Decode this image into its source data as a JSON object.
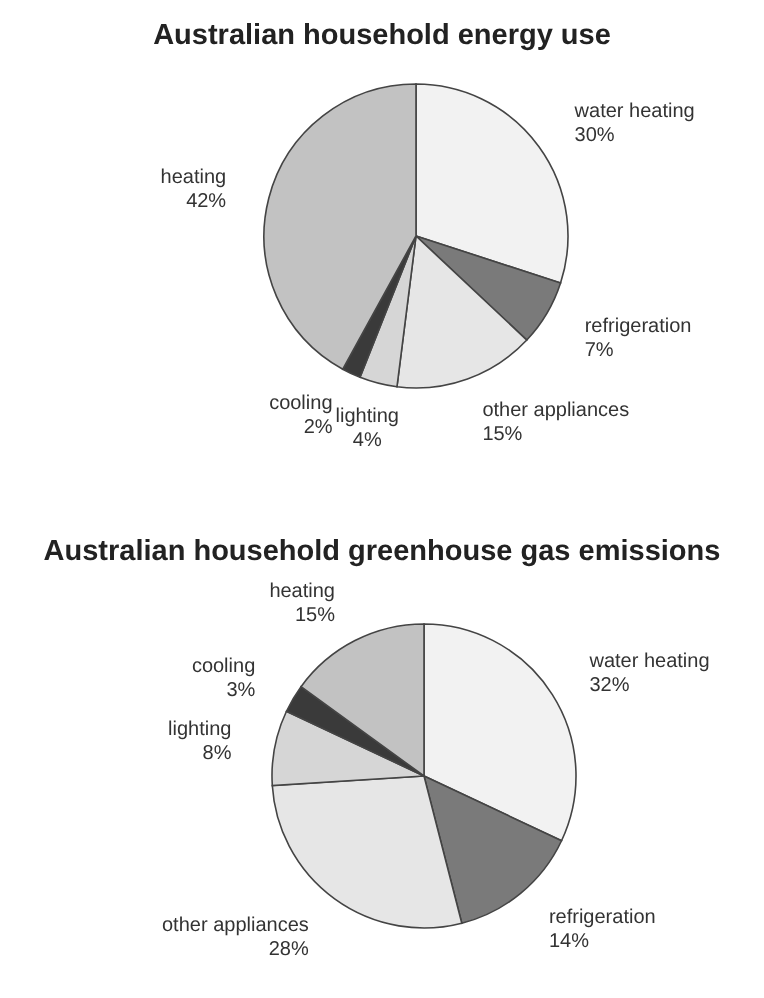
{
  "chart_data": [
    {
      "type": "pie",
      "title": "Australian household energy use",
      "categories": [
        "water heating",
        "refrigeration",
        "other appliances",
        "lighting",
        "cooling",
        "heating"
      ],
      "values": [
        30,
        7,
        15,
        4,
        2,
        42
      ],
      "value_labels": [
        "30%",
        "7%",
        "15%",
        "4%",
        "2%",
        "42%"
      ],
      "colors": [
        "#f2f2f2",
        "#7a7a7a",
        "#e6e6e6",
        "#d6d6d6",
        "#3a3a3a",
        "#c2c2c2"
      ]
    },
    {
      "type": "pie",
      "title": "Australian household greenhouse gas emissions",
      "categories": [
        "water heating",
        "refrigeration",
        "other appliances",
        "lighting",
        "cooling",
        "heating"
      ],
      "values": [
        32,
        14,
        28,
        8,
        3,
        15
      ],
      "value_labels": [
        "32%",
        "14%",
        "28%",
        "8%",
        "3%",
        "15%"
      ],
      "colors": [
        "#f2f2f2",
        "#7a7a7a",
        "#e6e6e6",
        "#d6d6d6",
        "#3a3a3a",
        "#c2c2c2"
      ]
    }
  ]
}
